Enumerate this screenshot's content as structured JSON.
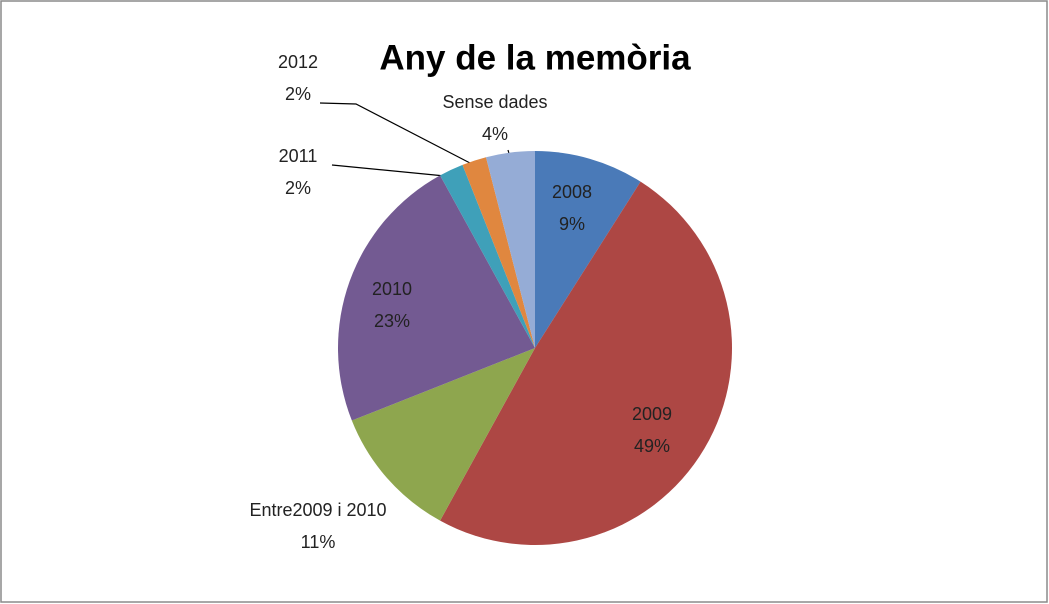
{
  "chart_data": {
    "type": "pie",
    "title": "Any de la memòria",
    "categories": [
      "2008",
      "2009",
      "Entre2009 i 2010",
      "2010",
      "2011",
      "2012",
      "Sense dades"
    ],
    "values": [
      9,
      49,
      11,
      23,
      2,
      2,
      4
    ],
    "value_labels": [
      "9%",
      "49%",
      "11%",
      "23%",
      "2%",
      "2%",
      "4%"
    ],
    "colors": [
      "#4a7ab8",
      "#ad4744",
      "#8ea64e",
      "#735a92",
      "#3fa0b9",
      "#e0873f",
      "#95acd6"
    ]
  }
}
